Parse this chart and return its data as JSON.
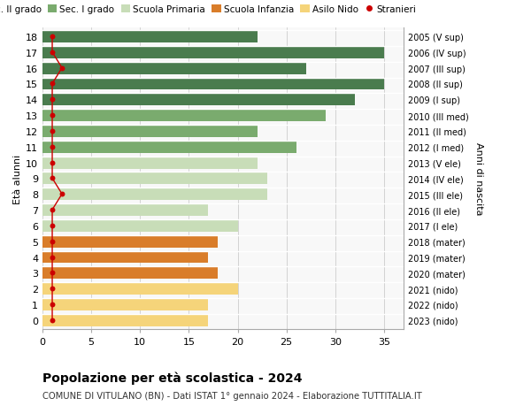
{
  "ages": [
    18,
    17,
    16,
    15,
    14,
    13,
    12,
    11,
    10,
    9,
    8,
    7,
    6,
    5,
    4,
    3,
    2,
    1,
    0
  ],
  "values": [
    22,
    35,
    27,
    35,
    32,
    29,
    22,
    26,
    22,
    23,
    23,
    17,
    20,
    18,
    17,
    18,
    20,
    17,
    17
  ],
  "stranieri": [
    1,
    1,
    2,
    1,
    1,
    1,
    1,
    1,
    1,
    1,
    2,
    1,
    1,
    1,
    1,
    1,
    1,
    1,
    1
  ],
  "right_labels": [
    "2005 (V sup)",
    "2006 (IV sup)",
    "2007 (III sup)",
    "2008 (II sup)",
    "2009 (I sup)",
    "2010 (III med)",
    "2011 (II med)",
    "2012 (I med)",
    "2013 (V ele)",
    "2014 (IV ele)",
    "2015 (III ele)",
    "2016 (II ele)",
    "2017 (I ele)",
    "2018 (mater)",
    "2019 (mater)",
    "2020 (mater)",
    "2021 (nido)",
    "2022 (nido)",
    "2023 (nido)"
  ],
  "bar_colors": [
    "#4a7c4e",
    "#4a7c4e",
    "#4a7c4e",
    "#4a7c4e",
    "#4a7c4e",
    "#7aab6e",
    "#7aab6e",
    "#7aab6e",
    "#c8ddb8",
    "#c8ddb8",
    "#c8ddb8",
    "#c8ddb8",
    "#c8ddb8",
    "#d97d2a",
    "#d97d2a",
    "#d97d2a",
    "#f5d47a",
    "#f5d47a",
    "#f5d47a"
  ],
  "legend_labels": [
    "Sec. II grado",
    "Sec. I grado",
    "Scuola Primaria",
    "Scuola Infanzia",
    "Asilo Nido",
    "Stranieri"
  ],
  "legend_colors": [
    "#4a7c4e",
    "#7aab6e",
    "#c8ddb8",
    "#d97d2a",
    "#f5d47a",
    "#cc0000"
  ],
  "ylabel_left": "Età alunni",
  "ylabel_right": "Anni di nascita",
  "title": "Popolazione per età scolastica - 2024",
  "subtitle": "COMUNE DI VITULANO (BN) - Dati ISTAT 1° gennaio 2024 - Elaborazione TUTTITALIA.IT",
  "xlim": [
    0,
    37
  ],
  "xticks": [
    0,
    5,
    10,
    15,
    20,
    25,
    30,
    35
  ],
  "stranieri_color": "#cc0000",
  "bar_height": 0.78,
  "background_color": "#f8f8f8"
}
